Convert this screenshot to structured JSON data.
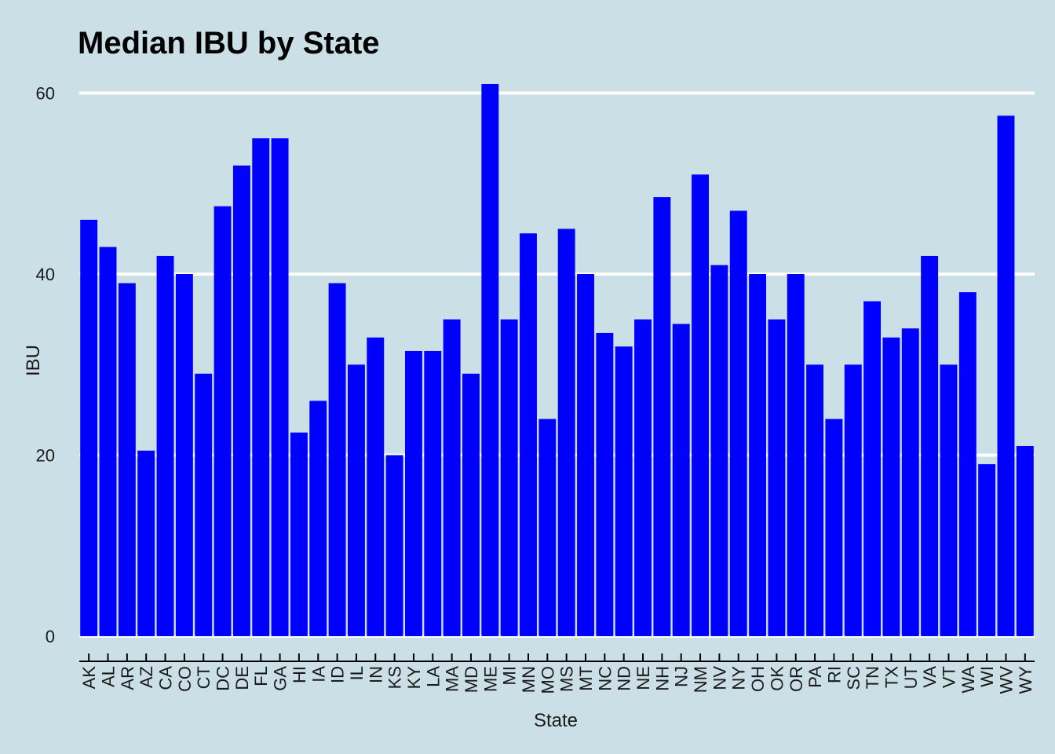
{
  "chart_data": {
    "type": "bar",
    "title": "Median IBU by State",
    "xlabel": "State",
    "ylabel": "IBU",
    "ylim": [
      0,
      62
    ],
    "yticks": [
      0,
      20,
      40,
      60
    ],
    "grid": "horizontal",
    "bar_color": "#0000ff",
    "background_color": "#cbdfe6",
    "categories": [
      "AK",
      "AL",
      "AR",
      "AZ",
      "CA",
      "CO",
      "CT",
      "DC",
      "DE",
      "FL",
      "GA",
      "HI",
      "IA",
      "ID",
      "IL",
      "IN",
      "KS",
      "KY",
      "LA",
      "MA",
      "MD",
      "ME",
      "MI",
      "MN",
      "MO",
      "MS",
      "MT",
      "NC",
      "ND",
      "NE",
      "NH",
      "NJ",
      "NM",
      "NV",
      "NY",
      "OH",
      "OK",
      "OR",
      "PA",
      "RI",
      "SC",
      "TN",
      "TX",
      "UT",
      "VA",
      "VT",
      "WA",
      "WI",
      "WV",
      "WY"
    ],
    "values": [
      46,
      43,
      39,
      20.5,
      42,
      40,
      29,
      47.5,
      52,
      55,
      55,
      22.5,
      26,
      39,
      30,
      33,
      20,
      31.5,
      31.5,
      35,
      29,
      61,
      35,
      44.5,
      24,
      45,
      40,
      33.5,
      32,
      35,
      48.5,
      34.5,
      51,
      41,
      47,
      40,
      35,
      40,
      30,
      24,
      30,
      37,
      33,
      34,
      42,
      30,
      38,
      19,
      57.5,
      21
    ]
  }
}
